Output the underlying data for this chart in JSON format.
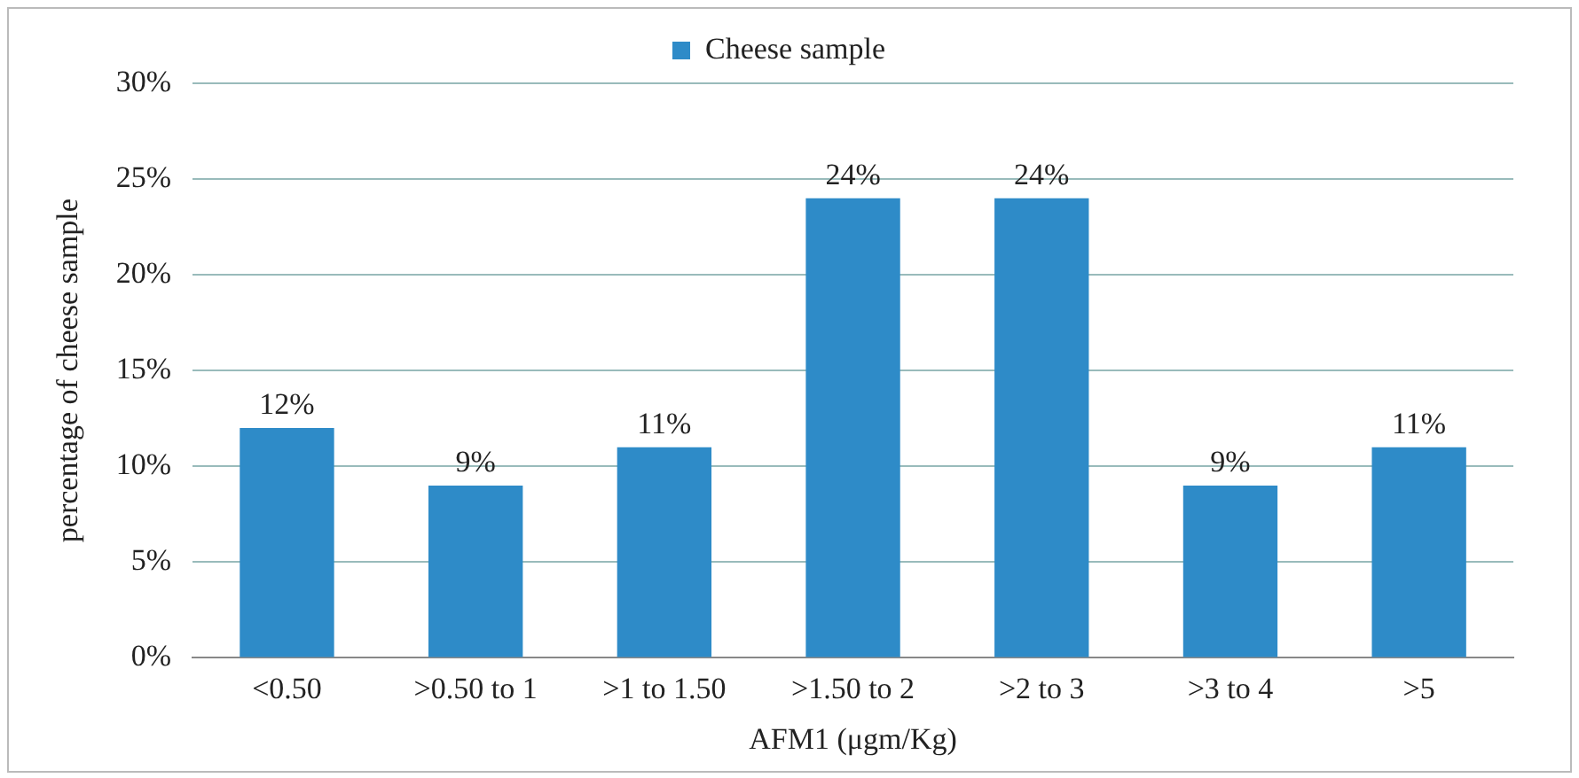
{
  "chart_data": {
    "type": "bar",
    "categories": [
      "<0.50",
      ">0.50 to 1",
      ">1 to 1.50",
      ">1.50 to 2",
      ">2 to 3",
      ">3 to 4",
      ">5"
    ],
    "series": [
      {
        "name": "Cheese sample",
        "color": "#2e8bc8",
        "values": [
          12,
          9,
          11,
          24,
          24,
          9,
          11
        ],
        "value_labels": [
          "12%",
          "9%",
          "11%",
          "24%",
          "24%",
          "9%",
          "11%"
        ]
      }
    ],
    "xlabel": "AFM1 (μgm/Kg)",
    "ylabel": "percentage of cheese sample",
    "ylim": [
      0,
      30
    ],
    "yticks": [
      {
        "value": 0,
        "label": "0%"
      },
      {
        "value": 5,
        "label": "5%"
      },
      {
        "value": 10,
        "label": "10%"
      },
      {
        "value": 15,
        "label": "15%"
      },
      {
        "value": 20,
        "label": "20%"
      },
      {
        "value": 25,
        "label": "25%"
      },
      {
        "value": 30,
        "label": "30%"
      }
    ],
    "grid": "y",
    "legend": "top"
  }
}
